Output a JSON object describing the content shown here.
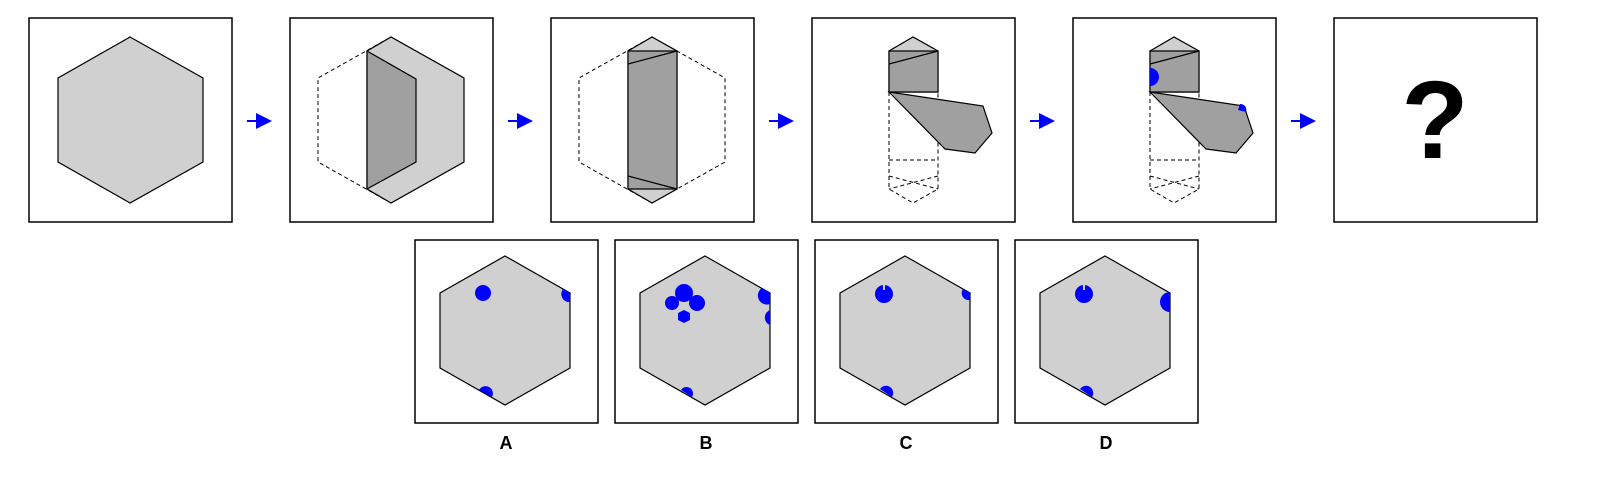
{
  "puzzle": {
    "question_mark": "?",
    "options": [
      {
        "id": "a",
        "label": "A"
      },
      {
        "id": "b",
        "label": "B"
      },
      {
        "id": "c",
        "label": "C"
      },
      {
        "id": "d",
        "label": "D"
      }
    ]
  },
  "colors": {
    "paper_face": "#d0d0d0",
    "paper_fold": "#a0a0a0",
    "punch_hole": "#0000ff",
    "arrow": "#0000ff",
    "frame": "#000000"
  }
}
